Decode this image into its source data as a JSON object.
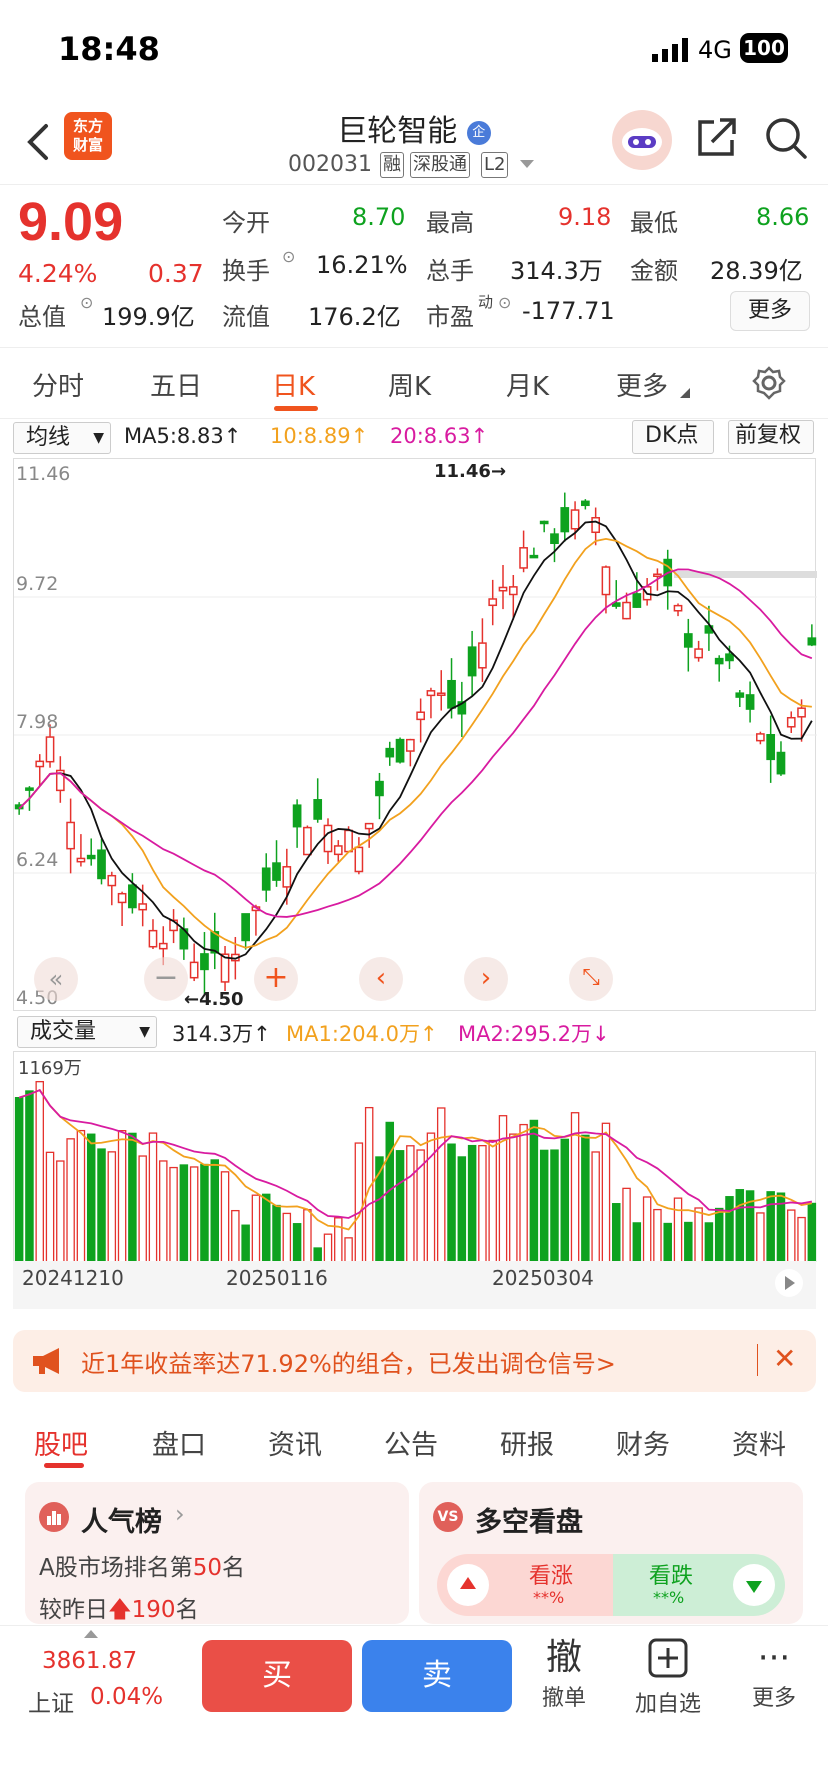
{
  "status_bar": {
    "time": "18:48",
    "network": "4G",
    "battery": "100"
  },
  "header": {
    "logo_line1": "东方",
    "logo_line2": "财富",
    "stock_name": "巨轮智能",
    "badge": "企",
    "stock_code": "002031",
    "tags": [
      "融",
      "深股通",
      "L2"
    ]
  },
  "quote": {
    "price": "9.09",
    "change_pct": "4.24%",
    "change": "0.37",
    "open_label": "今开",
    "open": "8.70",
    "high_label": "最高",
    "high": "9.18",
    "low_label": "最低",
    "low": "8.66",
    "turnover_label": "换手",
    "turnover": "16.21%",
    "volume_label": "总手",
    "volume": "314.3万",
    "amount_label": "金额",
    "amount": "28.39亿",
    "mktcap_label": "总值",
    "mktcap": "199.9亿",
    "float_label": "流值",
    "float": "176.2亿",
    "pe_label": "市盈",
    "pe_sup": "动",
    "pe": "-177.71",
    "more": "更多"
  },
  "period_tabs": [
    "分时",
    "五日",
    "日K",
    "周K",
    "月K",
    "更多"
  ],
  "ma_bar": {
    "select": "均线",
    "ma5": "MA5:8.83",
    "ma10": "10:8.89",
    "ma20": "20:8.63",
    "dk": "DK点",
    "adjust": "前复权"
  },
  "kline": {
    "y_labels": [
      "11.46",
      "9.72",
      "7.98",
      "6.24",
      "4.50"
    ],
    "max_label": "11.46",
    "min_label": "4.50"
  },
  "vol_bar": {
    "select": "成交量",
    "vol": "314.3万",
    "ma1": "MA1:204.0万",
    "ma2": "MA2:295.2万",
    "max_label": "1169万"
  },
  "dates": [
    "20241210",
    "20250116",
    "20250304"
  ],
  "colors": {
    "up": "#e5322d",
    "down": "#0ea21f",
    "ma5": "#111111",
    "ma10": "#f2a11e",
    "ma20": "#d81ba0",
    "accent": "#f0541e"
  },
  "banner": {
    "text": "近1年收益率达71.92%的组合，已发出调仓信号>"
  },
  "bottom_tabs": [
    "股吧",
    "盘口",
    "资讯",
    "公告",
    "研报",
    "财务",
    "资料"
  ],
  "cards": {
    "popularity_title": "人气榜",
    "rank_line_prefix": "A股市场排名第",
    "rank": "50",
    "rank_suffix": "名",
    "change_prefix": "较昨日",
    "change": "190",
    "change_suffix": "名",
    "sentiment_title": "多空看盘",
    "bull": "看涨",
    "bear": "看跌",
    "bull_pct": "**%",
    "bear_pct": "**%"
  },
  "bottom_bar": {
    "index_value": "3861.87",
    "index_name": "上证",
    "index_pct": "0.04%",
    "buy": "买",
    "sell": "卖",
    "cancel_icon_char": "撤",
    "cancel": "撤单",
    "add": "加自选",
    "more": "更多"
  }
}
